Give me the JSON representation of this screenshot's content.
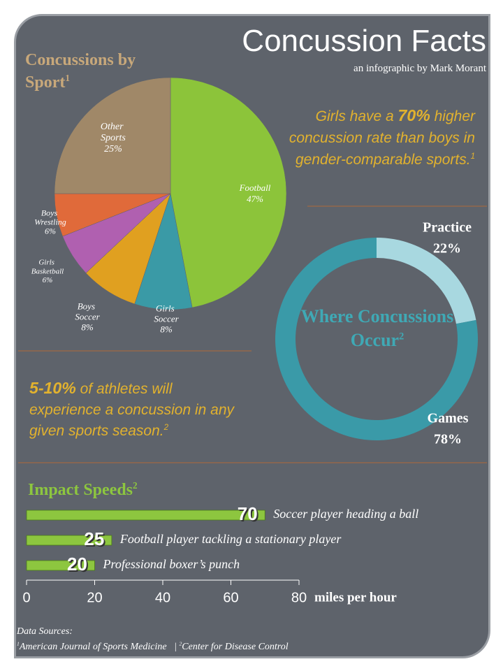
{
  "header": {
    "title": "Concussion Facts",
    "subtitle": "an infographic by Mark Morant"
  },
  "chart_data": [
    {
      "type": "pie",
      "title": "Concussions by Sport",
      "title_note": "1",
      "categories": [
        "Football",
        "Girls Soccer",
        "Boys Soccer",
        "Girls Basketball",
        "Boys Wrestling",
        "Other Sports"
      ],
      "values": [
        47,
        8,
        8,
        6,
        6,
        25
      ],
      "value_labels": [
        "47%",
        "8%",
        "8%",
        "6%",
        "6%",
        "25%"
      ],
      "colors": [
        "#8cc43a",
        "#3a9aa6",
        "#e0a020",
        "#b060b0",
        "#e06a3a",
        "#a08868"
      ]
    },
    {
      "type": "donut",
      "title": "Where Concussions Occur",
      "title_note": "2",
      "categories": [
        "Practice",
        "Games"
      ],
      "values": [
        22,
        78
      ],
      "value_labels": [
        "22%",
        "78%"
      ],
      "colors": [
        "#a8d8e0",
        "#3a9aa8"
      ]
    },
    {
      "type": "bar",
      "orientation": "horizontal",
      "title": "Impact Speeds",
      "title_note": "2",
      "categories": [
        "Soccer player heading a ball",
        "Football player tackling a stationary player",
        "Professional boxer’s punch"
      ],
      "values": [
        70,
        25,
        20
      ],
      "color": "#8dc63f",
      "x_label": "miles per hour",
      "xlim": [
        0,
        80
      ],
      "xticks": [
        0,
        20,
        40,
        60,
        80
      ]
    }
  ],
  "facts": [
    {
      "before": "Girls have a ",
      "strong": "70%",
      "after": " higher concussion rate than boys in gender-comparable sports.",
      "note": "1"
    },
    {
      "before": "",
      "strong": "5-10%",
      "after": " of athletes will experience a concussion in any given sports season.",
      "note": "2"
    }
  ],
  "sources": {
    "label": "Data Sources:",
    "items": [
      {
        "note": "1",
        "text": "American Journal of Sports Medicine"
      },
      {
        "note": "2",
        "text": "Center for Disease Control"
      }
    ],
    "separator": "|"
  }
}
